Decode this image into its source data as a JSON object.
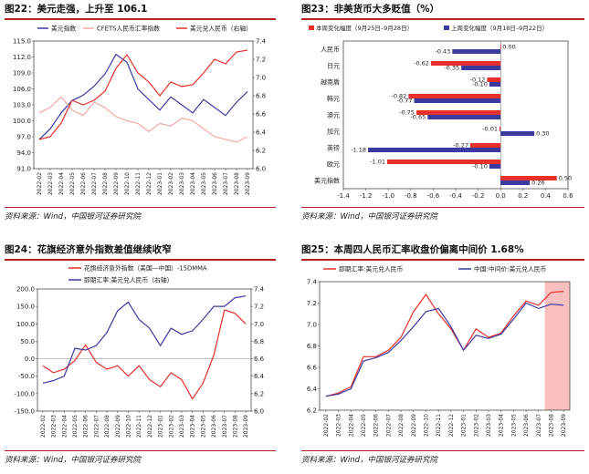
{
  "panels": [
    {
      "title": "图22：美元走强，上升至 106.1",
      "source": "资料来源：Wind，中国银河证券研究院"
    },
    {
      "title": "图23：非美货币大多贬值（%）",
      "source": "资料来源：Wind，中国银河证券研究院"
    },
    {
      "title": "图24：花旗经济意外指数差值继续收窄",
      "source": "资料来源：Wind，中国银河证券研究院"
    },
    {
      "title": "图25：本周四人民币汇率收盘价偏离中间价 1.68%",
      "source": "资料来源：Wind，中国银河证券研究院"
    }
  ],
  "colors": {
    "red": "#e8302a",
    "navy": "#3b3aa0",
    "pink": "#f3a9a6",
    "rule": "#b41f23",
    "shade": "#f7b4b3"
  },
  "chart_data": [
    {
      "type": "line",
      "months": [
        "2022-02",
        "2022-03",
        "2022-04",
        "2022-05",
        "2022-06",
        "2022-07",
        "2022-08",
        "2022-09",
        "2022-10",
        "2022-11",
        "2022-12",
        "2023-01",
        "2023-02",
        "2023-03",
        "2023-04",
        "2023-05",
        "2023-06",
        "2023-07",
        "2023-08",
        "2023-09"
      ],
      "ylim_left": [
        91,
        115
      ],
      "yticks_left": [
        "91.0",
        "94.0",
        "97.0",
        "100.0",
        "103.0",
        "106.0",
        "109.0",
        "112.0",
        "115.0"
      ],
      "ylim_right": [
        6.0,
        7.4
      ],
      "yticks_right": [
        "6.0",
        "6.2",
        "6.4",
        "6.6",
        "6.8",
        "7.0",
        "7.2",
        "7.4"
      ],
      "legend": [
        {
          "name": "美元指数",
          "color": "navy"
        },
        {
          "name": "CFETS人民币汇率指数",
          "color": "pink"
        },
        {
          "name": "美元兑人民币（右轴）",
          "color": "red"
        }
      ],
      "series": [
        {
          "name": "美元指数",
          "axis": "left",
          "color": "navy",
          "values": [
            96.5,
            98.5,
            101.5,
            103.8,
            104.8,
            106.5,
            108.8,
            112.5,
            111.0,
            106.0,
            104.0,
            102.0,
            104.5,
            103.0,
            101.5,
            104.0,
            102.5,
            101.0,
            103.5,
            105.5
          ]
        },
        {
          "name": "CFETS人民币汇率指数",
          "axis": "left",
          "color": "pink",
          "values": [
            101.5,
            102.5,
            104.5,
            102.0,
            101.0,
            103.5,
            102.5,
            100.8,
            100.0,
            99.5,
            98.0,
            99.5,
            99.0,
            100.5,
            100.0,
            98.5,
            97.0,
            96.5,
            96.0,
            97.0
          ]
        },
        {
          "name": "美元兑人民币（右轴）",
          "axis": "right",
          "color": "red",
          "values": [
            6.32,
            6.35,
            6.5,
            6.75,
            6.7,
            6.75,
            6.85,
            7.1,
            7.25,
            7.05,
            6.95,
            6.8,
            6.95,
            6.9,
            6.92,
            7.05,
            7.2,
            7.15,
            7.28,
            7.3
          ]
        }
      ]
    },
    {
      "type": "bar",
      "orientation": "horizontal",
      "categories": [
        "人民币",
        "日元",
        "越南盾",
        "韩元",
        "澳元",
        "加元",
        "英镑",
        "欧元",
        "美元指数"
      ],
      "xlim": [
        -1.4,
        0.6
      ],
      "xticks": [
        "-1.4",
        "-1.2",
        "-1.0",
        "-0.8",
        "-0.6",
        "-0.4",
        "-0.2",
        "0.0",
        "0.2",
        "0.4",
        "0.6"
      ],
      "legend": [
        {
          "name": "本周变化幅度（9月25日–9月28日）",
          "color": "red"
        },
        {
          "name": "上周变化幅度（9月18日–9月22日）",
          "color": "navy"
        }
      ],
      "series": [
        {
          "name": "本周变化幅度（9月25日–9月28日）",
          "color": "red",
          "values": [
            0.0,
            -0.62,
            -0.12,
            -0.82,
            -0.75,
            -0.01,
            -0.27,
            -1.01,
            0.5
          ]
        },
        {
          "name": "上周变化幅度（9月18日–9月22日）",
          "color": "navy",
          "values": [
            -0.43,
            -0.35,
            -0.1,
            -0.77,
            -0.65,
            0.3,
            -1.18,
            -0.1,
            0.26
          ]
        }
      ],
      "labels_this_week": [
        "0.00",
        "-0.62",
        "-0.12",
        "-0.82",
        "-0.75",
        "-0.01",
        "-0.27",
        "-1.01",
        "0.50"
      ],
      "labels_last_week": [
        "-0.43",
        "-0.35",
        "-0.10",
        "-0.77",
        "-0.65",
        "0.30",
        "-1.18",
        "-0.10",
        "0.26"
      ]
    },
    {
      "type": "line",
      "months": [
        "2022-02",
        "2022-03",
        "2022-04",
        "2022-05",
        "2022-06",
        "2022-07",
        "2022-08",
        "2022-09",
        "2022-10",
        "2022-11",
        "2022-12",
        "2023-01",
        "2023-02",
        "2023-03",
        "2023-04",
        "2023-05",
        "2023-06",
        "2023-07",
        "2023-08",
        "2023-09"
      ],
      "ylim_left": [
        -150,
        200
      ],
      "yticks_left": [
        "200.0",
        "150.0",
        "100.0",
        "50.0",
        "0.0",
        "-50.0",
        "-100.0",
        "-150.0"
      ],
      "ylim_right": [
        6.0,
        7.4
      ],
      "yticks_right": [
        "7.4",
        "7.2",
        "7.0",
        "6.8",
        "6.6",
        "6.4",
        "6.2",
        "6.0"
      ],
      "legend": [
        {
          "name": "花旗经济意外指数（美国—中国）-15DMMA",
          "color": "red"
        },
        {
          "name": "即期汇率:美元兑人民币（右轴）",
          "color": "navy"
        }
      ],
      "series": [
        {
          "name": "花旗经济意外指数（美国—中国）-15DMMA",
          "axis": "left",
          "color": "red",
          "values": [
            -20,
            -40,
            -30,
            -5,
            40,
            -10,
            -30,
            -20,
            -50,
            -20,
            -60,
            -80,
            -40,
            -60,
            -115,
            -70,
            10,
            140,
            130,
            100
          ]
        },
        {
          "name": "即期汇率:美元兑人民币（右轴）",
          "axis": "right",
          "color": "navy",
          "values": [
            6.32,
            6.35,
            6.4,
            6.72,
            6.7,
            6.75,
            6.9,
            7.15,
            7.25,
            7.05,
            6.95,
            6.75,
            6.95,
            6.88,
            6.92,
            7.05,
            7.2,
            7.2,
            7.3,
            7.32
          ]
        }
      ]
    },
    {
      "type": "line",
      "months": [
        "2022-02",
        "2022-03",
        "2022-04",
        "2022-05",
        "2022-06",
        "2022-07",
        "2022-08",
        "2022-09",
        "2022-10",
        "2022-11",
        "2022-12",
        "2023-01",
        "2023-02",
        "2023-03",
        "2023-04",
        "2023-05",
        "2023-06",
        "2023-07",
        "2023-08",
        "2023-09"
      ],
      "ylim": [
        6.2,
        7.4
      ],
      "yticks": [
        "7.4",
        "7.2",
        "7.0",
        "6.8",
        "6.6",
        "6.4",
        "6.2"
      ],
      "legend": [
        {
          "name": "即期汇率:美元兑人民币",
          "color": "red"
        },
        {
          "name": "中国:中间价:美元兑人民币",
          "color": "navy"
        }
      ],
      "shaded_from": "2023-08",
      "series": [
        {
          "name": "即期汇率:美元兑人民币",
          "color": "red",
          "values": [
            6.33,
            6.36,
            6.42,
            6.7,
            6.7,
            6.76,
            6.88,
            7.12,
            7.28,
            7.1,
            6.96,
            6.76,
            6.96,
            6.88,
            6.92,
            7.08,
            7.22,
            7.18,
            7.3,
            7.31
          ]
        },
        {
          "name": "中国:中间价:美元兑人民币",
          "color": "navy",
          "values": [
            6.33,
            6.35,
            6.4,
            6.66,
            6.69,
            6.74,
            6.85,
            6.98,
            7.12,
            7.15,
            6.98,
            6.76,
            6.9,
            6.87,
            6.91,
            7.05,
            7.2,
            7.15,
            7.19,
            7.18
          ]
        }
      ]
    }
  ]
}
